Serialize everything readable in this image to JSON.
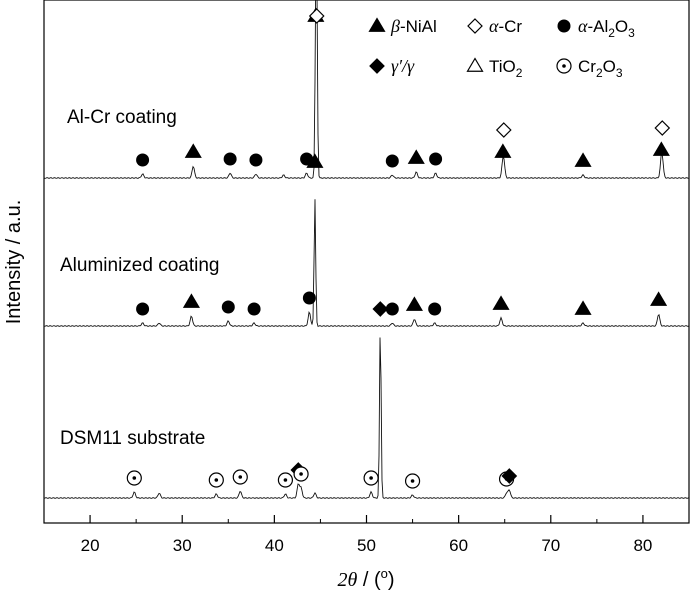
{
  "chart_data": {
    "type": "line",
    "xlabel_parts": {
      "var": "2θ",
      "unit_open": " / (",
      "unit_sup": "o",
      "unit_close": ")"
    },
    "ylabel": "Intensity / a.u.",
    "xlim": [
      15,
      85
    ],
    "x_ticks": [
      20,
      30,
      40,
      50,
      60,
      70,
      80
    ],
    "legend": [
      {
        "marker": "triangle-filled",
        "prefix": "",
        "ital": "β",
        "text": "-NiAl",
        "sub": ""
      },
      {
        "marker": "diamond-open",
        "prefix": "",
        "ital": "α",
        "text": "-Cr",
        "sub": ""
      },
      {
        "marker": "circle-filled",
        "prefix": "",
        "ital": "α",
        "text": "-Al",
        "sub": "2",
        "post": "O",
        "sub2": "3"
      },
      {
        "marker": "diamond-filled",
        "prefix": "",
        "ital": "γ′/γ",
        "text": "",
        "sub": ""
      },
      {
        "marker": "triangle-open",
        "prefix": "",
        "ital": "",
        "text": "TiO",
        "sub": "2"
      },
      {
        "marker": "circle-dot",
        "prefix": "",
        "ital": "",
        "text": "Cr",
        "sub": "2",
        "post": "O",
        "sub2": "3"
      }
    ],
    "series": [
      {
        "name": "Al-Cr coating",
        "peaks": [
          {
            "x": 25.7,
            "h": 4,
            "marker": "circle-filled"
          },
          {
            "x": 31.2,
            "h": 12,
            "marker": "triangle-filled"
          },
          {
            "x": 35.2,
            "h": 5,
            "marker": "circle-filled"
          },
          {
            "x": 38.0,
            "h": 4,
            "marker": "circle-filled"
          },
          {
            "x": 41.0,
            "h": 3
          },
          {
            "x": 43.5,
            "h": 5,
            "marker": "circle-filled"
          },
          {
            "x": 44.5,
            "h": 148,
            "marker": "triangle-filled"
          },
          {
            "x": 44.6,
            "h": 148,
            "marker": "diamond-open"
          },
          {
            "x": 52.8,
            "h": 3,
            "marker": "circle-filled"
          },
          {
            "x": 55.4,
            "h": 6,
            "marker": "triangle-filled"
          },
          {
            "x": 57.5,
            "h": 5,
            "marker": "circle-filled"
          },
          {
            "x": 64.8,
            "h": 12,
            "marker": "triangle-filled"
          },
          {
            "x": 64.9,
            "h": 12,
            "marker": "diamond-open"
          },
          {
            "x": 73.5,
            "h": 3,
            "marker": "triangle-filled"
          },
          {
            "x": 82.0,
            "h": 14,
            "marker": "triangle-filled"
          },
          {
            "x": 82.1,
            "h": 14,
            "marker": "diamond-open"
          }
        ]
      },
      {
        "name": "Aluminized coating",
        "peaks": [
          {
            "x": 25.7,
            "h": 3,
            "marker": "circle-filled"
          },
          {
            "x": 27.5,
            "h": 3
          },
          {
            "x": 31.0,
            "h": 10,
            "marker": "triangle-filled"
          },
          {
            "x": 35.0,
            "h": 5,
            "marker": "circle-filled"
          },
          {
            "x": 37.8,
            "h": 3,
            "marker": "circle-filled"
          },
          {
            "x": 43.8,
            "h": 14,
            "marker": "circle-filled"
          },
          {
            "x": 44.4,
            "h": 128,
            "marker": "triangle-filled"
          },
          {
            "x": 52.8,
            "h": 3,
            "marker": "circle-filled"
          },
          {
            "x": 55.2,
            "h": 7,
            "marker": "triangle-filled"
          },
          {
            "x": 57.4,
            "h": 3,
            "marker": "circle-filled"
          },
          {
            "x": 64.6,
            "h": 8,
            "marker": "triangle-filled"
          },
          {
            "x": 73.5,
            "h": 3,
            "marker": "triangle-filled"
          },
          {
            "x": 81.7,
            "h": 12,
            "marker": "triangle-filled"
          }
        ]
      },
      {
        "name": "DSM11 substrate",
        "peaks": [
          {
            "x": 24.8,
            "h": 6,
            "marker": "circle-dot"
          },
          {
            "x": 27.5,
            "h": 5
          },
          {
            "x": 33.7,
            "h": 4,
            "marker": "circle-dot"
          },
          {
            "x": 36.3,
            "h": 7,
            "marker": "circle-dot"
          },
          {
            "x": 41.2,
            "h": 4,
            "marker": "circle-dot"
          },
          {
            "x": 42.6,
            "h": 14,
            "marker": "diamond-filled"
          },
          {
            "x": 42.9,
            "h": 10,
            "marker": "circle-dot"
          },
          {
            "x": 44.4,
            "h": 5
          },
          {
            "x": 50.5,
            "h": 6,
            "marker": "circle-dot"
          },
          {
            "x": 51.5,
            "h": 175,
            "marker": "diamond-filled"
          },
          {
            "x": 55.0,
            "h": 3,
            "marker": "circle-dot"
          },
          {
            "x": 65.2,
            "h": 5,
            "marker": "circle-dot"
          },
          {
            "x": 65.5,
            "h": 8,
            "marker": "diamond-filled"
          }
        ]
      }
    ]
  }
}
